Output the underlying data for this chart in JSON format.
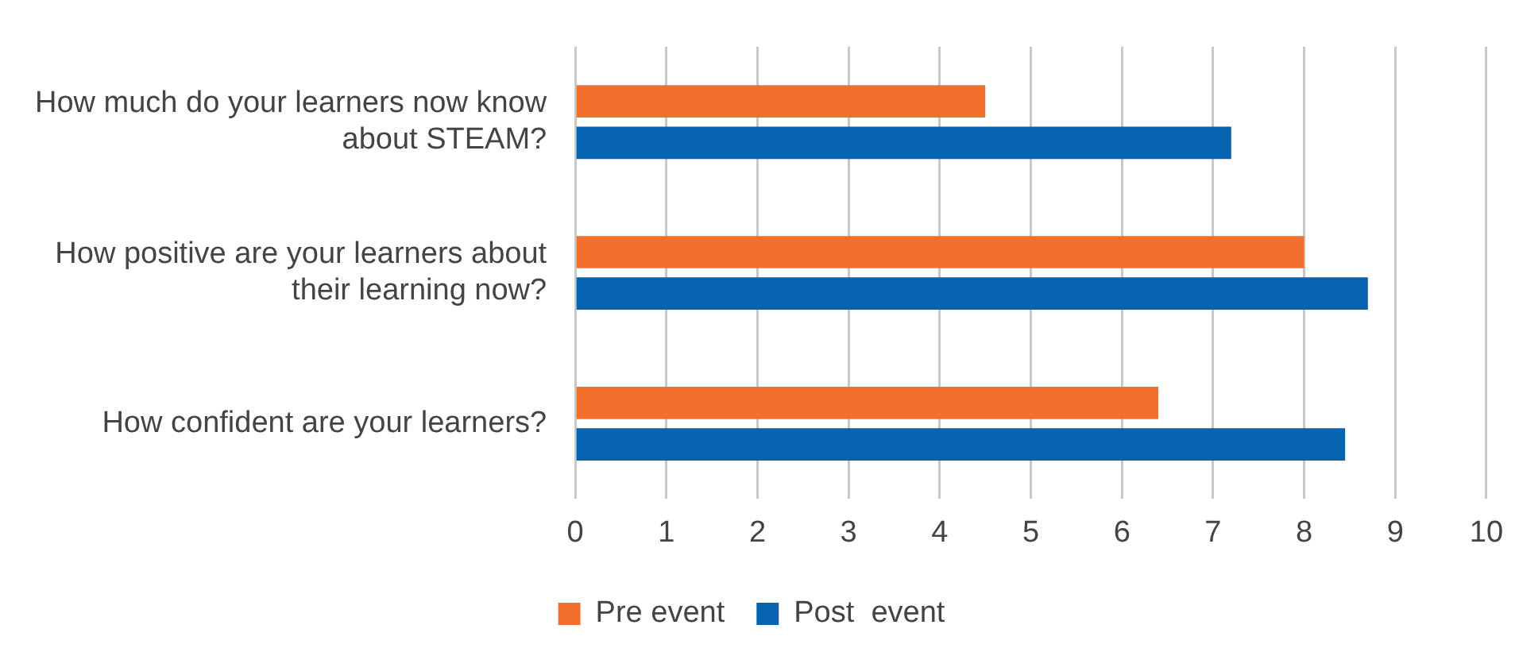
{
  "chart_data": {
    "type": "bar",
    "orientation": "horizontal",
    "categories": [
      "How much do your learners now know about STEAM?",
      "How positive are your learners about their learning now?",
      "How confident are your learners?"
    ],
    "series": [
      {
        "name": "Pre event",
        "color": "#f26f2c",
        "values": [
          4.5,
          8.0,
          6.4
        ]
      },
      {
        "name": "Post  event",
        "color": "#0563b0",
        "values": [
          7.2,
          8.7,
          8.45
        ]
      }
    ],
    "xlim": [
      0,
      10
    ],
    "xticks": [
      0,
      1,
      2,
      3,
      4,
      5,
      6,
      7,
      8,
      9,
      10
    ],
    "grid": "x",
    "legend": "bottom"
  }
}
